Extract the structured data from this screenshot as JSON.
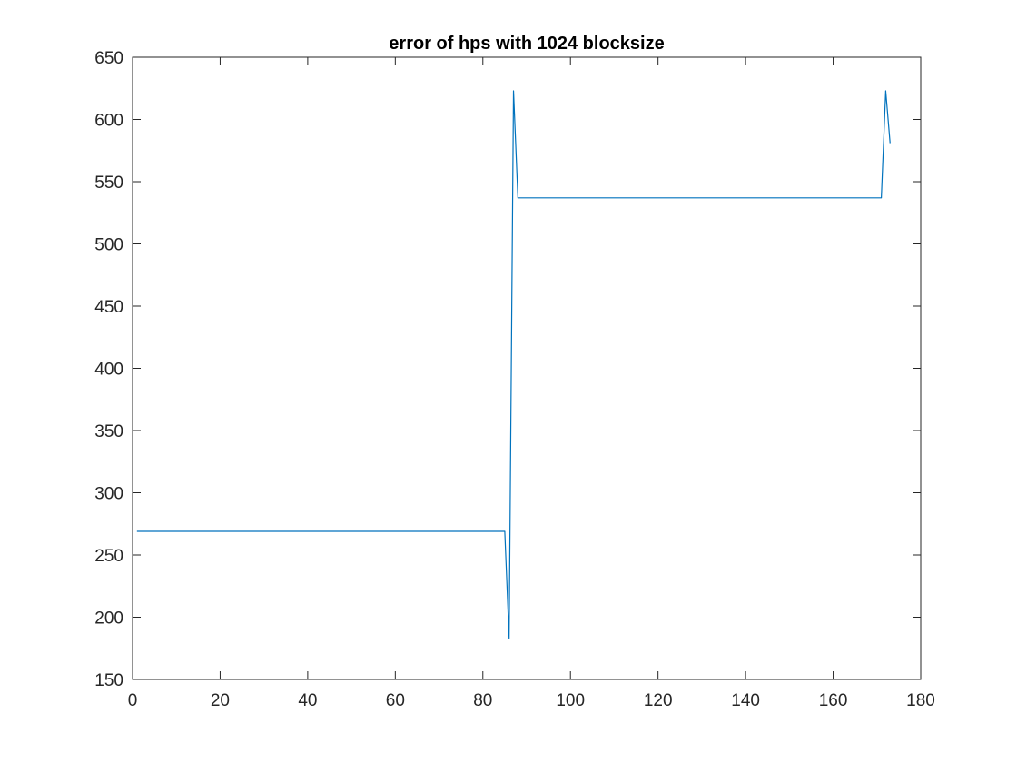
{
  "chart_data": {
    "type": "line",
    "title": "error of hps with 1024 blocksize",
    "xlabel": "",
    "ylabel": "",
    "xlim": [
      0,
      180
    ],
    "ylim": [
      150,
      650
    ],
    "xticks": [
      0,
      20,
      40,
      60,
      80,
      100,
      120,
      140,
      160,
      180
    ],
    "yticks": [
      150,
      200,
      250,
      300,
      350,
      400,
      450,
      500,
      550,
      600,
      650
    ],
    "grid": false,
    "box": true,
    "series": [
      {
        "color": "#0072BD",
        "x": [
          1,
          85,
          86,
          87,
          88,
          171,
          172,
          173
        ],
        "y": [
          269,
          269,
          183,
          623,
          537,
          537,
          623,
          581
        ]
      }
    ]
  },
  "colors": {
    "axis": "#262626",
    "background": "#ffffff",
    "line": "#0072BD"
  }
}
